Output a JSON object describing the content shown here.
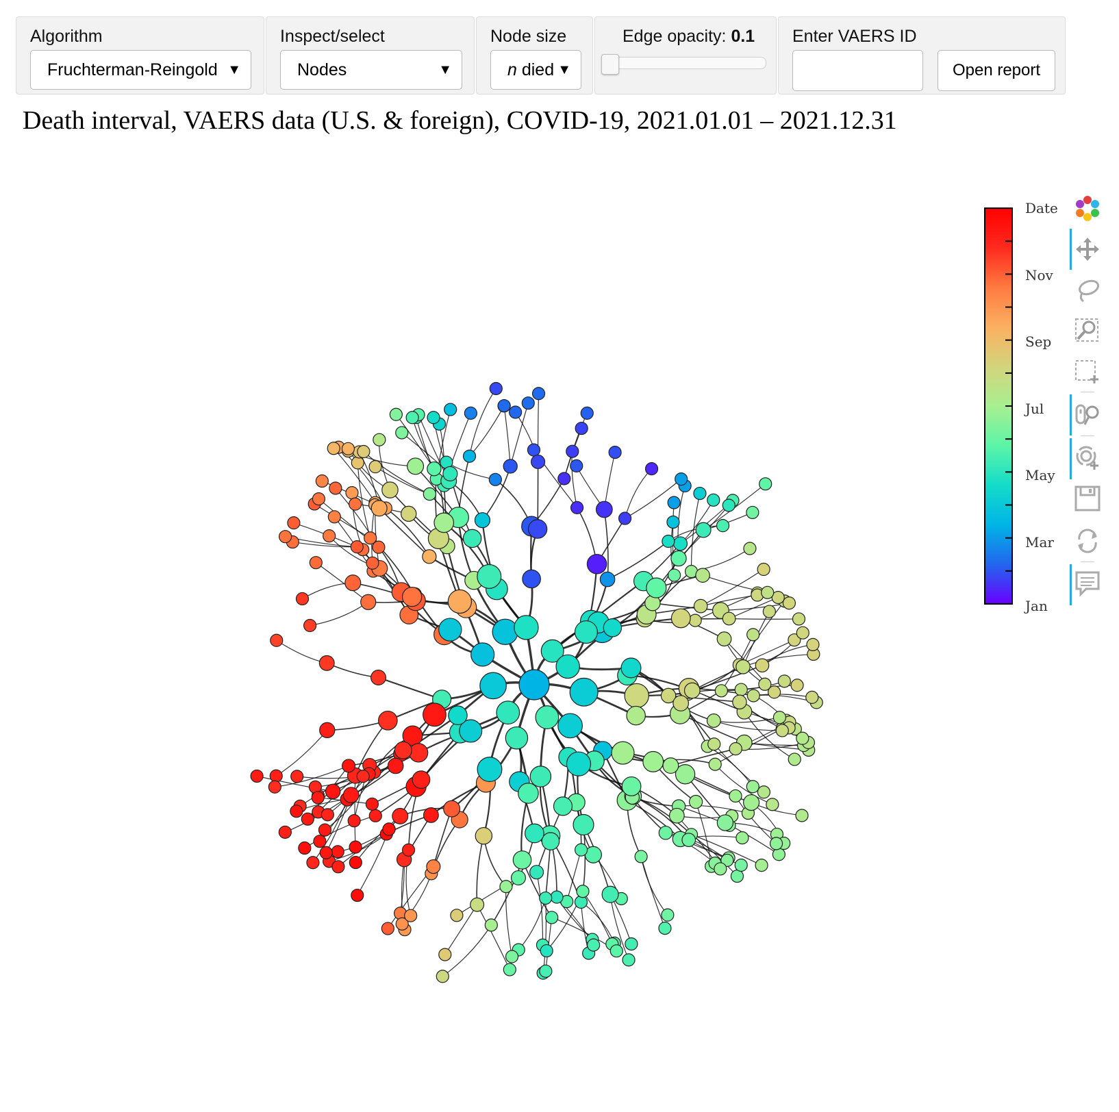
{
  "toolbar": {
    "algorithm": {
      "label": "Algorithm",
      "selected": "Fruchterman-Reingold"
    },
    "inspect": {
      "label": "Inspect/select",
      "selected": "Nodes"
    },
    "node_size": {
      "label": "Node size",
      "selected_n": "n",
      "selected_rest": " died"
    },
    "edge_opacity": {
      "label": "Edge opacity: ",
      "value": "0.1",
      "fraction": 0.0
    },
    "vaers": {
      "label": "Enter VAERS ID",
      "value": "",
      "button": "Open report"
    }
  },
  "plot": {
    "title": "Death interval, VAERS data (U.S. & foreign), COVID-19, 2021.01.01 – 2021.12.31",
    "colorbar": {
      "title": "Date",
      "ticks": [
        "Nov",
        "Sep",
        "Jul",
        "May",
        "Mar",
        "Jan"
      ],
      "colors": [
        "#6a00ff",
        "#2266ee",
        "#00b4e6",
        "#14dcc8",
        "#5cf5a8",
        "#a8ef90",
        "#d4d47c",
        "#fbb060",
        "#ff7a40",
        "#ff2a1e",
        "#ff0000"
      ]
    }
  },
  "tools": [
    "bokeh-logo-icon",
    "pan-icon",
    "lasso-select-icon",
    "box-zoom-icon",
    "box-select-icon",
    "wheel-zoom-icon",
    "zoom-in-icon",
    "save-icon",
    "reset-icon",
    "hover-icon"
  ]
}
